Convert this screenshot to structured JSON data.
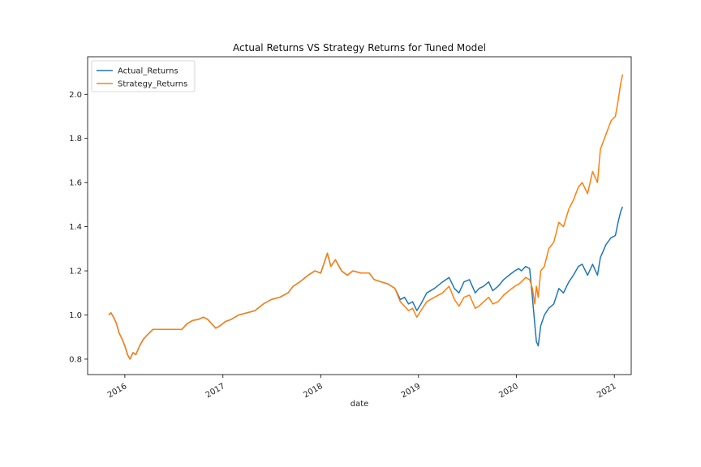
{
  "chart_data": {
    "type": "line",
    "title": "Actual Returns VS Strategy Returns for Tuned Model",
    "xlabel": "date",
    "ylabel": "",
    "xlim": [
      "2015-08-15",
      "2021-03-05"
    ],
    "ylim": [
      0.73,
      2.17
    ],
    "x_ticks": [
      "2016-01-01",
      "2017-01-01",
      "2018-01-01",
      "2019-01-01",
      "2020-01-01",
      "2021-01-01"
    ],
    "x_tick_labels": [
      "2016",
      "2017",
      "2018",
      "2019",
      "2020",
      "2021"
    ],
    "y_ticks": [
      0.8,
      1.0,
      1.2,
      1.4,
      1.6,
      1.8,
      2.0
    ],
    "y_tick_labels": [
      "0.8",
      "1.0",
      "1.2",
      "1.4",
      "1.6",
      "1.8",
      "2.0"
    ],
    "grid": false,
    "legend_position": "top-left",
    "series": [
      {
        "name": "Actual_Returns",
        "color": "#1f77b4",
        "points": [
          [
            "2015-11-02",
            1.0
          ],
          [
            "2015-11-10",
            1.01
          ],
          [
            "2015-11-20",
            0.99
          ],
          [
            "2015-12-01",
            0.96
          ],
          [
            "2015-12-10",
            0.92
          ],
          [
            "2015-12-22",
            0.89
          ],
          [
            "2016-01-01",
            0.86
          ],
          [
            "2016-01-11",
            0.82
          ],
          [
            "2016-01-20",
            0.8
          ],
          [
            "2016-02-01",
            0.83
          ],
          [
            "2016-02-11",
            0.82
          ],
          [
            "2016-02-25",
            0.86
          ],
          [
            "2016-03-10",
            0.89
          ],
          [
            "2016-03-25",
            0.91
          ],
          [
            "2016-04-15",
            0.935
          ],
          [
            "2016-08-01",
            0.935
          ],
          [
            "2016-08-20",
            0.96
          ],
          [
            "2016-09-10",
            0.975
          ],
          [
            "2016-10-01",
            0.98
          ],
          [
            "2016-10-20",
            0.99
          ],
          [
            "2016-11-05",
            0.98
          ],
          [
            "2016-11-20",
            0.96
          ],
          [
            "2016-12-05",
            0.94
          ],
          [
            "2016-12-20",
            0.95
          ],
          [
            "2017-01-10",
            0.97
          ],
          [
            "2017-02-01",
            0.98
          ],
          [
            "2017-03-01",
            1.0
          ],
          [
            "2017-04-01",
            1.01
          ],
          [
            "2017-05-01",
            1.02
          ],
          [
            "2017-06-01",
            1.05
          ],
          [
            "2017-07-01",
            1.07
          ],
          [
            "2017-08-01",
            1.08
          ],
          [
            "2017-09-01",
            1.1
          ],
          [
            "2017-09-20",
            1.13
          ],
          [
            "2017-10-15",
            1.15
          ],
          [
            "2017-11-15",
            1.18
          ],
          [
            "2017-12-10",
            1.2
          ],
          [
            "2018-01-01",
            1.19
          ],
          [
            "2018-01-15",
            1.24
          ],
          [
            "2018-01-26",
            1.28
          ],
          [
            "2018-02-08",
            1.22
          ],
          [
            "2018-02-25",
            1.25
          ],
          [
            "2018-03-20",
            1.2
          ],
          [
            "2018-04-10",
            1.18
          ],
          [
            "2018-05-01",
            1.2
          ],
          [
            "2018-06-01",
            1.19
          ],
          [
            "2018-07-01",
            1.19
          ],
          [
            "2018-07-20",
            1.16
          ],
          [
            "2018-08-15",
            1.15
          ],
          [
            "2018-09-10",
            1.14
          ],
          [
            "2018-10-05",
            1.12
          ],
          [
            "2018-10-25",
            1.07
          ],
          [
            "2018-11-10",
            1.08
          ],
          [
            "2018-11-25",
            1.05
          ],
          [
            "2018-12-10",
            1.06
          ],
          [
            "2018-12-26",
            1.02
          ],
          [
            "2019-01-10",
            1.05
          ],
          [
            "2019-02-01",
            1.1
          ],
          [
            "2019-03-01",
            1.12
          ],
          [
            "2019-04-01",
            1.15
          ],
          [
            "2019-04-25",
            1.17
          ],
          [
            "2019-05-15",
            1.12
          ],
          [
            "2019-06-01",
            1.1
          ],
          [
            "2019-06-20",
            1.15
          ],
          [
            "2019-07-10",
            1.16
          ],
          [
            "2019-08-01",
            1.1
          ],
          [
            "2019-08-15",
            1.12
          ],
          [
            "2019-09-01",
            1.13
          ],
          [
            "2019-09-20",
            1.15
          ],
          [
            "2019-10-05",
            1.11
          ],
          [
            "2019-10-25",
            1.13
          ],
          [
            "2019-11-15",
            1.16
          ],
          [
            "2019-12-05",
            1.18
          ],
          [
            "2019-12-26",
            1.2
          ],
          [
            "2020-01-10",
            1.21
          ],
          [
            "2020-01-20",
            1.2
          ],
          [
            "2020-02-05",
            1.22
          ],
          [
            "2020-02-20",
            1.21
          ],
          [
            "2020-03-01",
            1.08
          ],
          [
            "2020-03-10",
            0.96
          ],
          [
            "2020-03-16",
            0.88
          ],
          [
            "2020-03-23",
            0.86
          ],
          [
            "2020-04-01",
            0.95
          ],
          [
            "2020-04-15",
            1.0
          ],
          [
            "2020-05-01",
            1.03
          ],
          [
            "2020-05-20",
            1.05
          ],
          [
            "2020-06-08",
            1.12
          ],
          [
            "2020-06-25",
            1.1
          ],
          [
            "2020-07-15",
            1.15
          ],
          [
            "2020-08-01",
            1.18
          ],
          [
            "2020-08-20",
            1.22
          ],
          [
            "2020-09-03",
            1.23
          ],
          [
            "2020-09-23",
            1.18
          ],
          [
            "2020-10-12",
            1.23
          ],
          [
            "2020-10-30",
            1.18
          ],
          [
            "2020-11-10",
            1.26
          ],
          [
            "2020-12-01",
            1.32
          ],
          [
            "2020-12-20",
            1.35
          ],
          [
            "2021-01-05",
            1.36
          ],
          [
            "2021-01-15",
            1.42
          ],
          [
            "2021-01-25",
            1.47
          ],
          [
            "2021-02-01",
            1.49
          ]
        ]
      },
      {
        "name": "Strategy_Returns",
        "color": "#ff7f0e",
        "points": [
          [
            "2015-11-02",
            1.0
          ],
          [
            "2015-11-10",
            1.01
          ],
          [
            "2015-11-20",
            0.99
          ],
          [
            "2015-12-01",
            0.96
          ],
          [
            "2015-12-10",
            0.92
          ],
          [
            "2015-12-22",
            0.89
          ],
          [
            "2016-01-01",
            0.86
          ],
          [
            "2016-01-11",
            0.82
          ],
          [
            "2016-01-20",
            0.8
          ],
          [
            "2016-02-01",
            0.83
          ],
          [
            "2016-02-11",
            0.82
          ],
          [
            "2016-02-25",
            0.86
          ],
          [
            "2016-03-10",
            0.89
          ],
          [
            "2016-03-25",
            0.91
          ],
          [
            "2016-04-15",
            0.935
          ],
          [
            "2016-08-01",
            0.935
          ],
          [
            "2016-08-20",
            0.96
          ],
          [
            "2016-09-10",
            0.975
          ],
          [
            "2016-10-01",
            0.98
          ],
          [
            "2016-10-20",
            0.99
          ],
          [
            "2016-11-05",
            0.98
          ],
          [
            "2016-11-20",
            0.96
          ],
          [
            "2016-12-05",
            0.94
          ],
          [
            "2016-12-20",
            0.95
          ],
          [
            "2017-01-10",
            0.97
          ],
          [
            "2017-02-01",
            0.98
          ],
          [
            "2017-03-01",
            1.0
          ],
          [
            "2017-04-01",
            1.01
          ],
          [
            "2017-05-01",
            1.02
          ],
          [
            "2017-06-01",
            1.05
          ],
          [
            "2017-07-01",
            1.07
          ],
          [
            "2017-08-01",
            1.08
          ],
          [
            "2017-09-01",
            1.1
          ],
          [
            "2017-09-20",
            1.13
          ],
          [
            "2017-10-15",
            1.15
          ],
          [
            "2017-11-15",
            1.18
          ],
          [
            "2017-12-10",
            1.2
          ],
          [
            "2018-01-01",
            1.19
          ],
          [
            "2018-01-15",
            1.24
          ],
          [
            "2018-01-26",
            1.28
          ],
          [
            "2018-02-08",
            1.22
          ],
          [
            "2018-02-25",
            1.25
          ],
          [
            "2018-03-20",
            1.2
          ],
          [
            "2018-04-10",
            1.18
          ],
          [
            "2018-05-01",
            1.2
          ],
          [
            "2018-06-01",
            1.19
          ],
          [
            "2018-07-01",
            1.19
          ],
          [
            "2018-07-20",
            1.16
          ],
          [
            "2018-08-15",
            1.15
          ],
          [
            "2018-09-10",
            1.14
          ],
          [
            "2018-10-05",
            1.12
          ],
          [
            "2018-10-25",
            1.06
          ],
          [
            "2018-11-10",
            1.04
          ],
          [
            "2018-11-25",
            1.02
          ],
          [
            "2018-12-10",
            1.03
          ],
          [
            "2018-12-26",
            0.99
          ],
          [
            "2019-01-10",
            1.02
          ],
          [
            "2019-02-01",
            1.06
          ],
          [
            "2019-03-01",
            1.08
          ],
          [
            "2019-04-01",
            1.1
          ],
          [
            "2019-04-25",
            1.13
          ],
          [
            "2019-05-15",
            1.07
          ],
          [
            "2019-06-01",
            1.04
          ],
          [
            "2019-06-20",
            1.08
          ],
          [
            "2019-07-10",
            1.09
          ],
          [
            "2019-08-01",
            1.03
          ],
          [
            "2019-08-15",
            1.04
          ],
          [
            "2019-09-01",
            1.06
          ],
          [
            "2019-09-20",
            1.08
          ],
          [
            "2019-10-05",
            1.05
          ],
          [
            "2019-10-25",
            1.06
          ],
          [
            "2019-11-15",
            1.09
          ],
          [
            "2019-12-05",
            1.11
          ],
          [
            "2019-12-26",
            1.13
          ],
          [
            "2020-01-10",
            1.14
          ],
          [
            "2020-01-20",
            1.15
          ],
          [
            "2020-02-05",
            1.17
          ],
          [
            "2020-02-20",
            1.16
          ],
          [
            "2020-03-01",
            1.12
          ],
          [
            "2020-03-10",
            1.05
          ],
          [
            "2020-03-16",
            1.13
          ],
          [
            "2020-03-23",
            1.08
          ],
          [
            "2020-04-01",
            1.2
          ],
          [
            "2020-04-15",
            1.22
          ],
          [
            "2020-05-01",
            1.3
          ],
          [
            "2020-05-20",
            1.33
          ],
          [
            "2020-06-08",
            1.42
          ],
          [
            "2020-06-25",
            1.4
          ],
          [
            "2020-07-15",
            1.48
          ],
          [
            "2020-08-01",
            1.52
          ],
          [
            "2020-08-20",
            1.58
          ],
          [
            "2020-09-03",
            1.6
          ],
          [
            "2020-09-23",
            1.55
          ],
          [
            "2020-10-12",
            1.65
          ],
          [
            "2020-10-30",
            1.6
          ],
          [
            "2020-11-10",
            1.75
          ],
          [
            "2020-12-01",
            1.82
          ],
          [
            "2020-12-20",
            1.88
          ],
          [
            "2021-01-05",
            1.9
          ],
          [
            "2021-01-15",
            1.97
          ],
          [
            "2021-01-25",
            2.05
          ],
          [
            "2021-02-01",
            2.09
          ]
        ]
      }
    ]
  }
}
